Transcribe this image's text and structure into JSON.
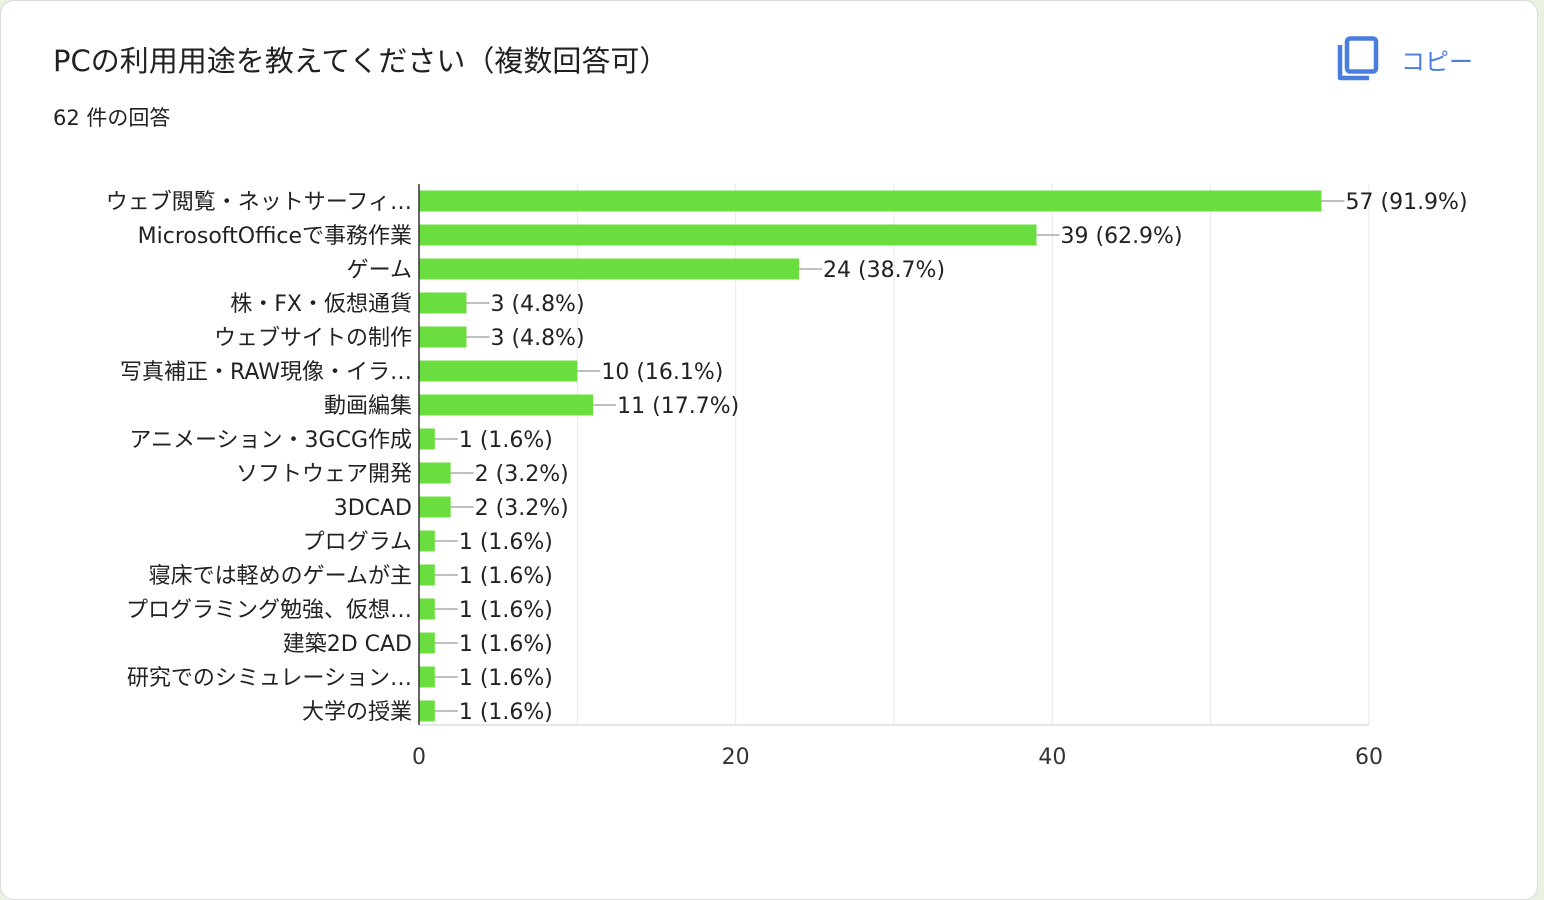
{
  "header": {
    "title": "PCの利用用途を教えてください（複数回答可）",
    "response_count": "62 件の回答",
    "copy_label": "コピー",
    "copy_icon": "copy-icon"
  },
  "colors": {
    "bar": "#6bde3f",
    "accent": "#4a7ede",
    "grid": "#e8e8e8",
    "axis": "#333333"
  },
  "chart_data": {
    "type": "bar",
    "orientation": "horizontal",
    "title": "",
    "xlabel": "",
    "ylabel": "",
    "xlim": [
      0,
      60
    ],
    "x_ticks": [
      0,
      20,
      40,
      60
    ],
    "grid": true,
    "categories": [
      "ウェブ閲覧・ネットサーフィ…",
      "MicrosoftOfficeで事務作業",
      "ゲーム",
      "株・FX・仮想通貨",
      "ウェブサイトの制作",
      "写真補正・RAW現像・イラ…",
      "動画編集",
      "アニメーション・3GCG作成",
      "ソフトウェア開発",
      "3DCAD",
      "プログラム",
      "寝床では軽めのゲームが主",
      "プログラミング勉強、仮想…",
      "建築2D CAD",
      "研究でのシミュレーション…",
      "大学の授業"
    ],
    "values": [
      57,
      39,
      24,
      3,
      3,
      10,
      11,
      1,
      2,
      2,
      1,
      1,
      1,
      1,
      1,
      1
    ],
    "data_labels": [
      "57 (91.9%)",
      "39 (62.9%)",
      "24 (38.7%)",
      "3 (4.8%)",
      "3 (4.8%)",
      "10 (16.1%)",
      "11 (17.7%)",
      "1 (1.6%)",
      "2 (3.2%)",
      "2 (3.2%)",
      "1 (1.6%)",
      "1 (1.6%)",
      "1 (1.6%)",
      "1 (1.6%)",
      "1 (1.6%)",
      "1 (1.6%)"
    ]
  }
}
